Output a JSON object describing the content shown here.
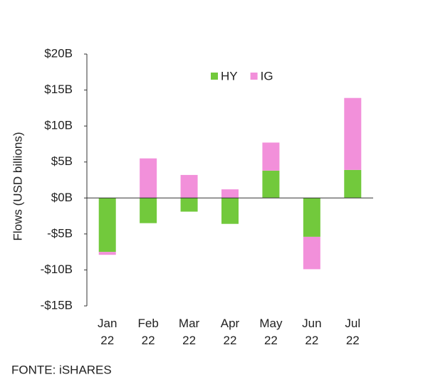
{
  "chart_data": {
    "type": "bar",
    "stacked": true,
    "y_label": "Flows (USD billions)",
    "source": "FONTE: iSHARES",
    "categories": [
      "Jan 22",
      "Feb 22",
      "Mar 22",
      "Apr 22",
      "May 22",
      "Jun 22",
      "Jul 22"
    ],
    "series": [
      {
        "name": "HY",
        "color": "#72c93c",
        "values": [
          -7.5,
          -3.5,
          -1.9,
          -3.6,
          3.8,
          -5.4,
          3.9
        ]
      },
      {
        "name": "IG",
        "color": "#f290da",
        "values": [
          -0.4,
          5.5,
          3.2,
          1.2,
          3.9,
          -4.5,
          10.0
        ]
      }
    ],
    "ylim": [
      -15,
      20
    ],
    "yticks": [
      {
        "value": -15,
        "label": "-$15B"
      },
      {
        "value": -10,
        "label": "-$10B"
      },
      {
        "value": -5,
        "label": "-$5B"
      },
      {
        "value": 0,
        "label": "$0B"
      },
      {
        "value": 5,
        "label": "$5B"
      },
      {
        "value": 10,
        "label": "$10B"
      },
      {
        "value": 15,
        "label": "$15B"
      },
      {
        "value": 20,
        "label": "$20B"
      }
    ],
    "grid": false,
    "legend": "top"
  }
}
